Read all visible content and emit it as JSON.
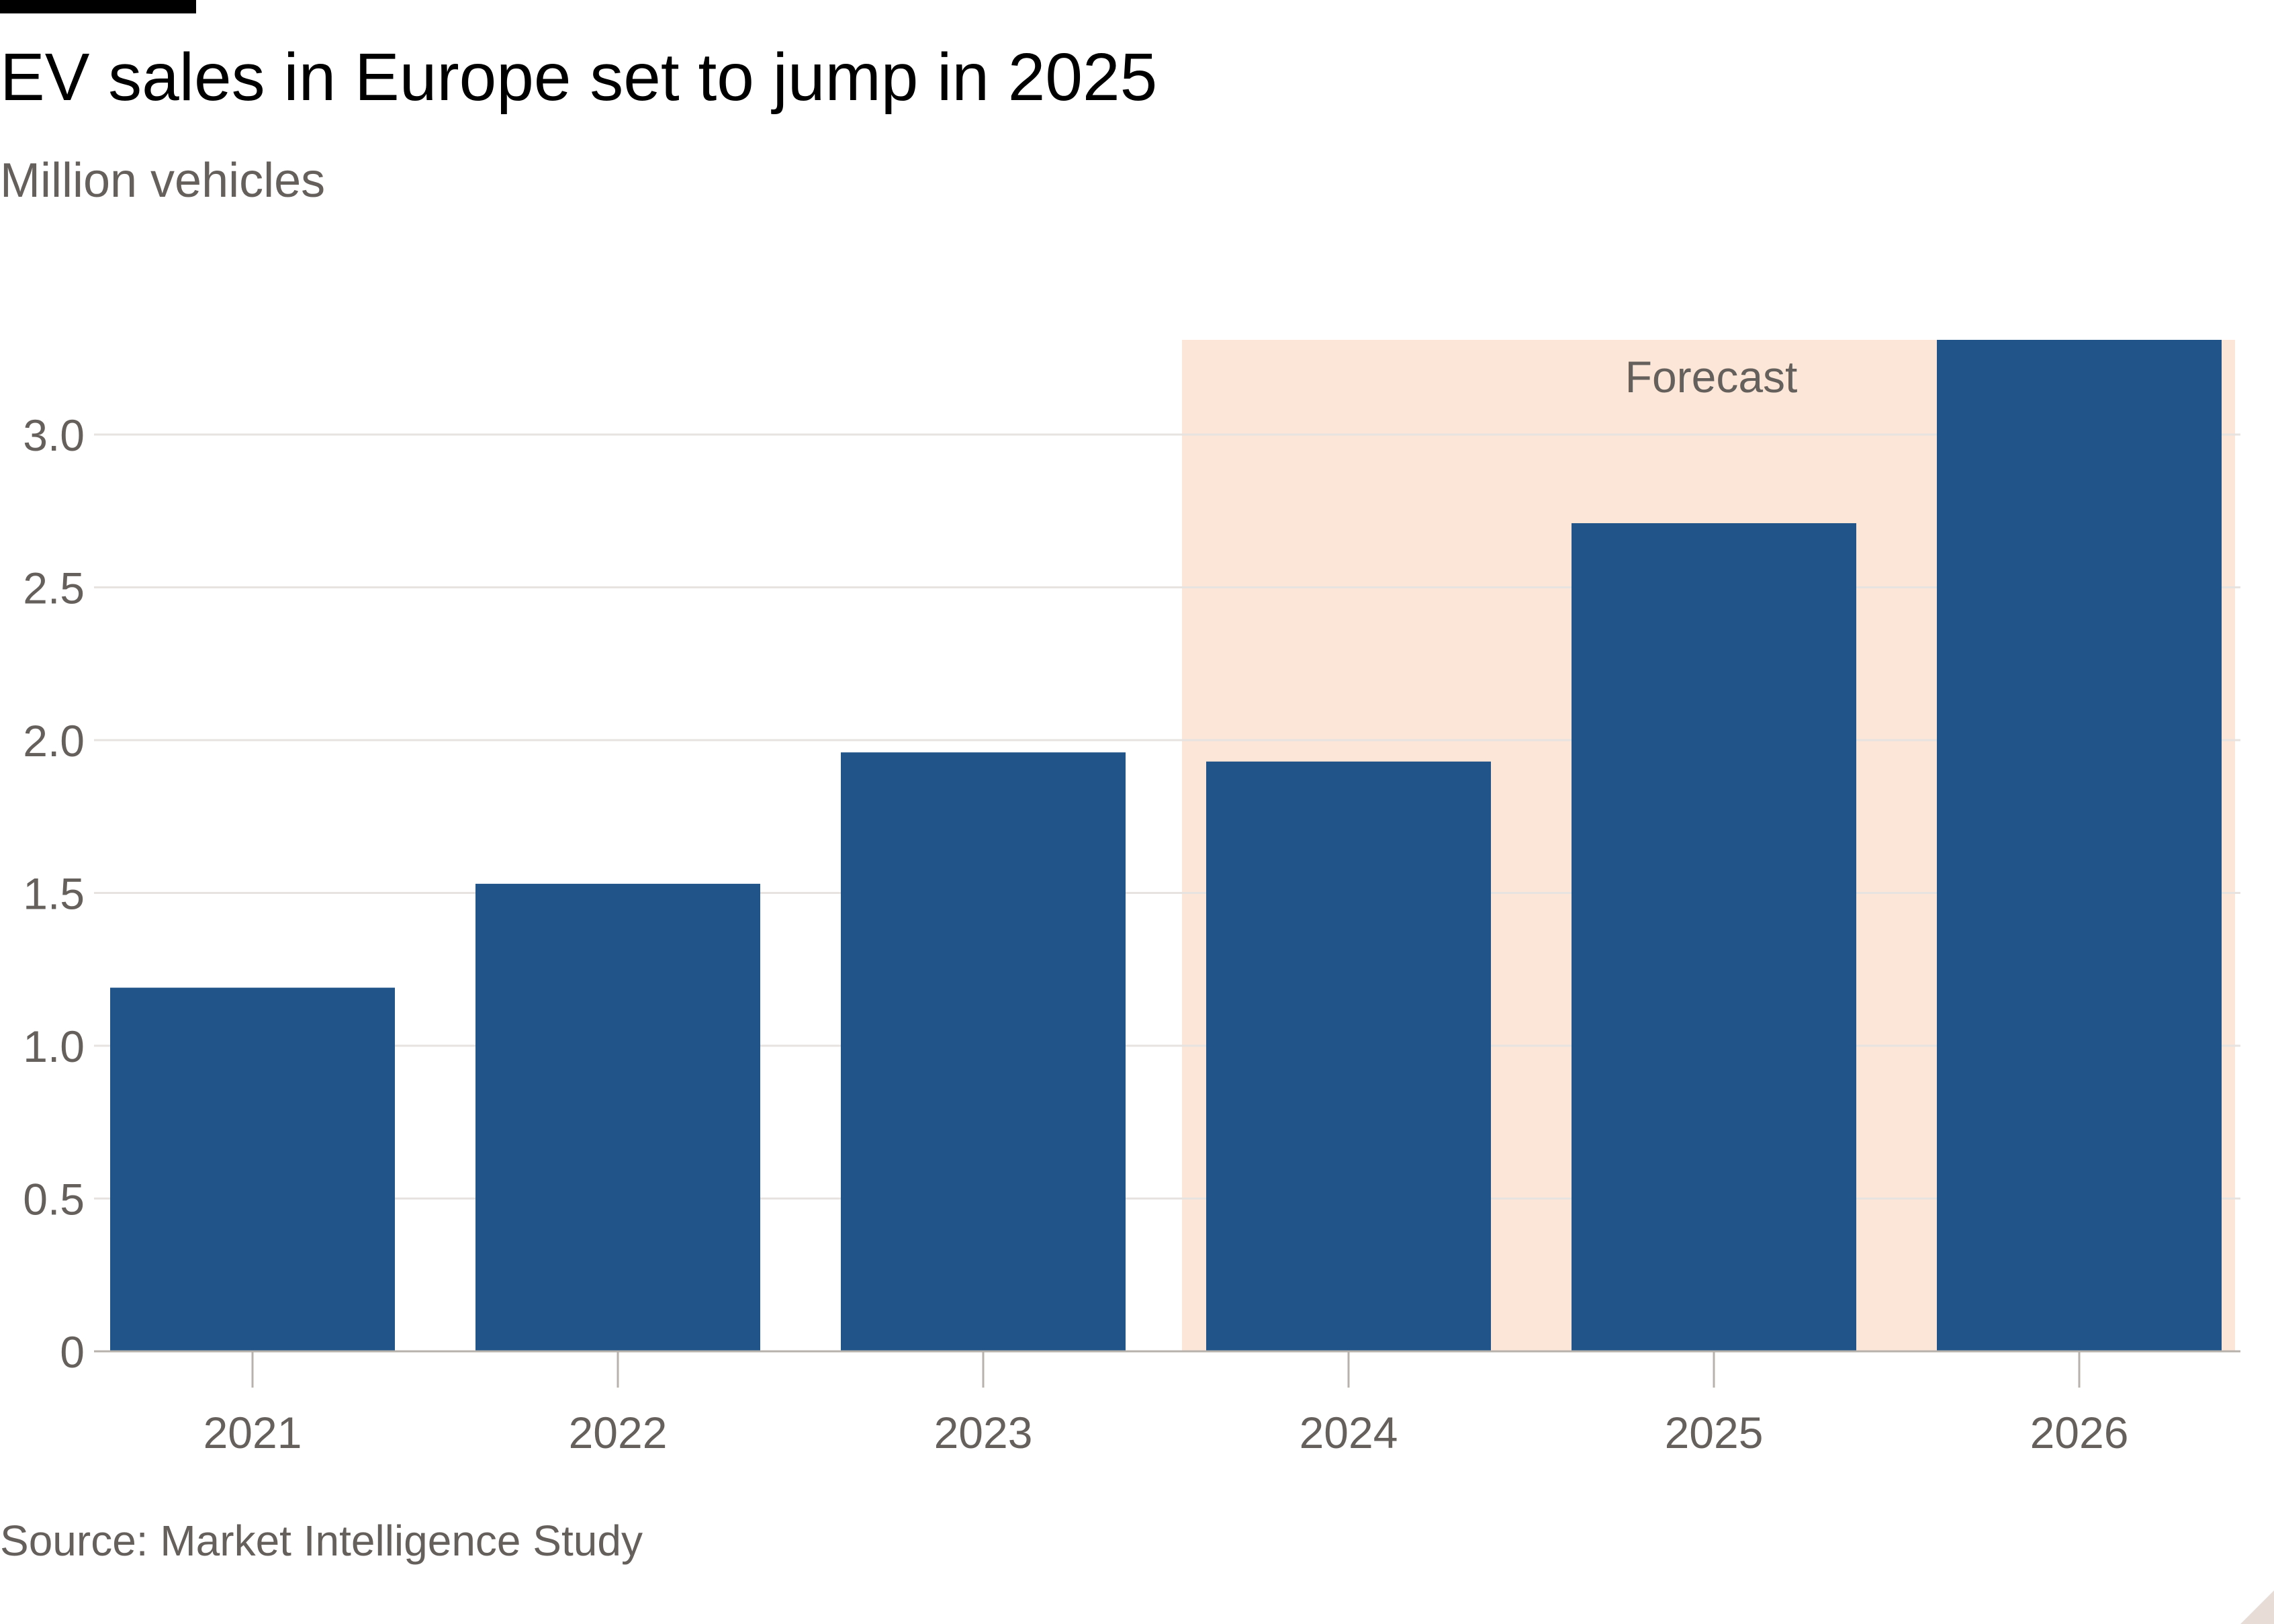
{
  "title": "EV sales in Europe set to jump in 2025",
  "subtitle": "Million vehicles",
  "source": "Source: Market Intelligence Study",
  "colors": {
    "bar": "#21558a",
    "forecast_band": "#fbe6d7",
    "grid": "#e6e3e0",
    "axis_text": "#66605c",
    "title": "#000000"
  },
  "chart_data": {
    "type": "bar",
    "categories": [
      "2021",
      "2022",
      "2023",
      "2024",
      "2025",
      "2026"
    ],
    "values": [
      1.19,
      1.53,
      1.96,
      1.93,
      2.71,
      3.31
    ],
    "ylim": [
      0,
      3.31
    ],
    "yticks": [
      0,
      0.5,
      1.0,
      1.5,
      2.0,
      2.5,
      3.0
    ],
    "ytick_labels": [
      "0",
      "0.5",
      "1.0",
      "1.5",
      "2.0",
      "2.5",
      "3.0"
    ],
    "annotations": [
      {
        "text": "Forecast",
        "from_category": "2024",
        "to_category": "2026"
      }
    ],
    "grid": true,
    "legend": "none"
  }
}
